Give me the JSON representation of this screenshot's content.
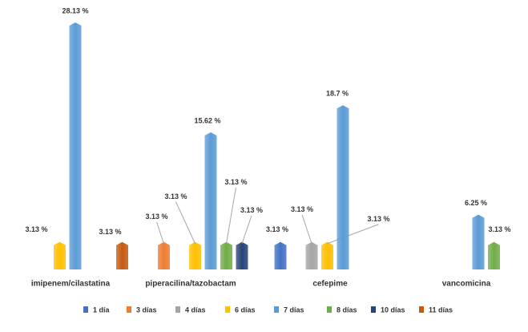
{
  "chart_data": {
    "type": "bar",
    "categories": [
      "imipenem/cilastatina",
      "piperacilina/tazobactam",
      "cefepime",
      "vancomicina"
    ],
    "series": [
      {
        "name": "1 día",
        "color": "#4472c4",
        "values": [
          null,
          null,
          3.13,
          null
        ],
        "value_labels": [
          null,
          null,
          "3.13 %",
          null
        ]
      },
      {
        "name": "3 días",
        "color": "#ed7d31",
        "values": [
          null,
          3.13,
          null,
          null
        ],
        "value_labels": [
          null,
          "3.13 %",
          null,
          null
        ]
      },
      {
        "name": "4 días",
        "color": "#a5a5a5",
        "values": [
          null,
          null,
          3.13,
          null
        ],
        "value_labels": [
          null,
          null,
          "3.13 %",
          null
        ]
      },
      {
        "name": "6 días",
        "color": "#ffc000",
        "values": [
          3.13,
          3.13,
          3.13,
          null
        ],
        "value_labels": [
          "3.13 %",
          "3.13 %",
          "3.13 %",
          null
        ]
      },
      {
        "name": "7 días",
        "color": "#5b9bd5",
        "values": [
          28.13,
          15.62,
          18.7,
          6.25
        ],
        "value_labels": [
          "28.13 %",
          "15.62 %",
          "18.7 %",
          "6.25 %"
        ]
      },
      {
        "name": "8 días",
        "color": "#70ad47",
        "values": [
          null,
          3.13,
          null,
          3.13
        ],
        "value_labels": [
          null,
          "3.13 %",
          null,
          "3.13 %"
        ]
      },
      {
        "name": "10 días",
        "color": "#264478",
        "values": [
          null,
          3.13,
          null,
          null
        ],
        "value_labels": [
          null,
          "3.13 %",
          null,
          null
        ]
      },
      {
        "name": "11 días",
        "color": "#c55a11",
        "values": [
          3.13,
          null,
          null,
          null
        ],
        "value_labels": [
          "3.13 %",
          null,
          null,
          null
        ]
      }
    ]
  }
}
